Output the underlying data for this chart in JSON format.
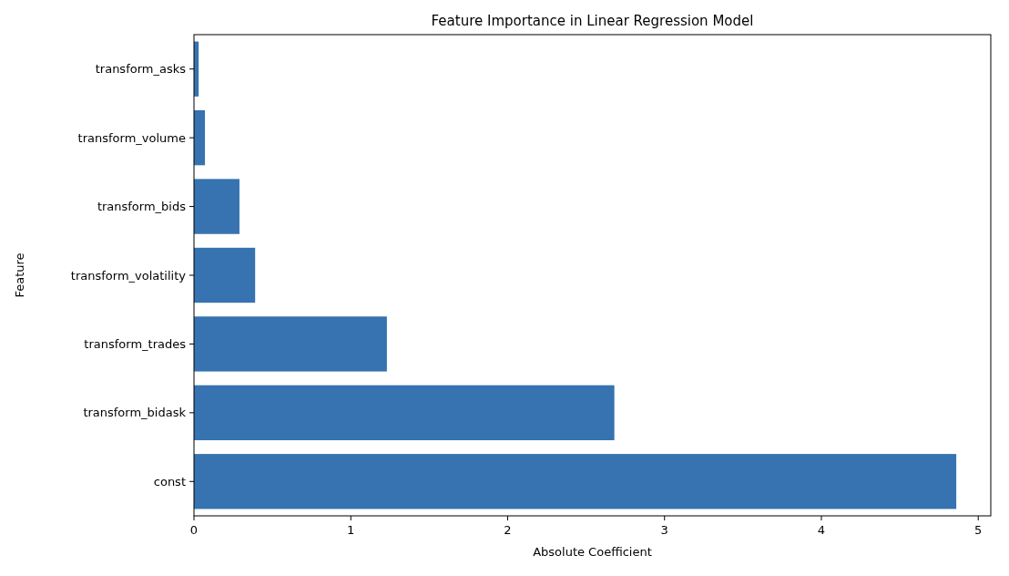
{
  "chart_data": {
    "type": "bar",
    "orientation": "horizontal",
    "title": "Feature Importance in Linear Regression Model",
    "xlabel": "Absolute Coefficient",
    "ylabel": "Feature",
    "categories": [
      "transform_asks",
      "transform_volume",
      "transform_bids",
      "transform_volatility",
      "transform_trades",
      "transform_bidask",
      "const"
    ],
    "values": [
      0.03,
      0.07,
      0.29,
      0.39,
      1.23,
      2.68,
      4.86
    ],
    "color": "#3673b0",
    "xlim": [
      0,
      5.08
    ],
    "xticks": [
      0,
      1,
      2,
      3,
      4,
      5
    ],
    "grid": false
  }
}
